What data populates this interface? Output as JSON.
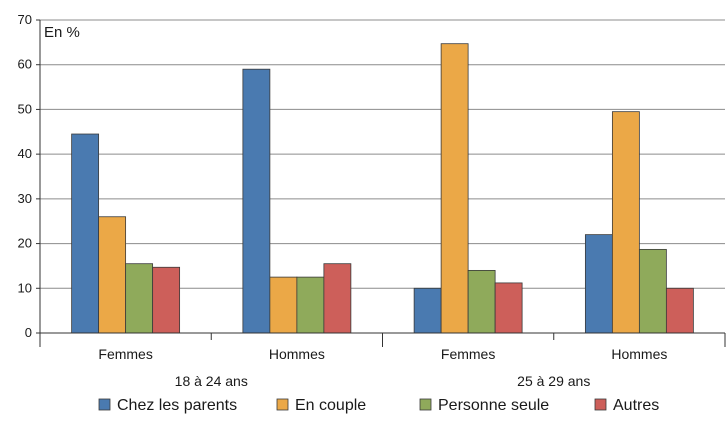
{
  "chart_data": {
    "type": "bar",
    "unit_label": "En %",
    "title": "",
    "xlabel": "",
    "ylabel": "",
    "ylim": [
      0,
      70
    ],
    "yticks": [
      0,
      10,
      20,
      30,
      40,
      50,
      60,
      70
    ],
    "grid": true,
    "legend_position": "bottom",
    "categories": [
      "Femmes",
      "Hommes",
      "Femmes",
      "Hommes"
    ],
    "groups": [
      {
        "label": "18 à 24 ans",
        "categories": [
          0,
          1
        ]
      },
      {
        "label": "25 à 29 ans",
        "categories": [
          2,
          3
        ]
      }
    ],
    "series": [
      {
        "name": "Chez les parents",
        "color": "#4a7ab0",
        "values": [
          44.5,
          59.0,
          10.0,
          22.0
        ]
      },
      {
        "name": "En couple",
        "color": "#eba847",
        "values": [
          26.0,
          12.5,
          64.7,
          49.5
        ]
      },
      {
        "name": "Personne seule",
        "color": "#8faa5b",
        "values": [
          15.5,
          12.5,
          14.0,
          18.7
        ]
      },
      {
        "name": "Autres",
        "color": "#cd5f5a",
        "values": [
          14.7,
          15.5,
          11.2,
          10.0
        ]
      }
    ]
  }
}
